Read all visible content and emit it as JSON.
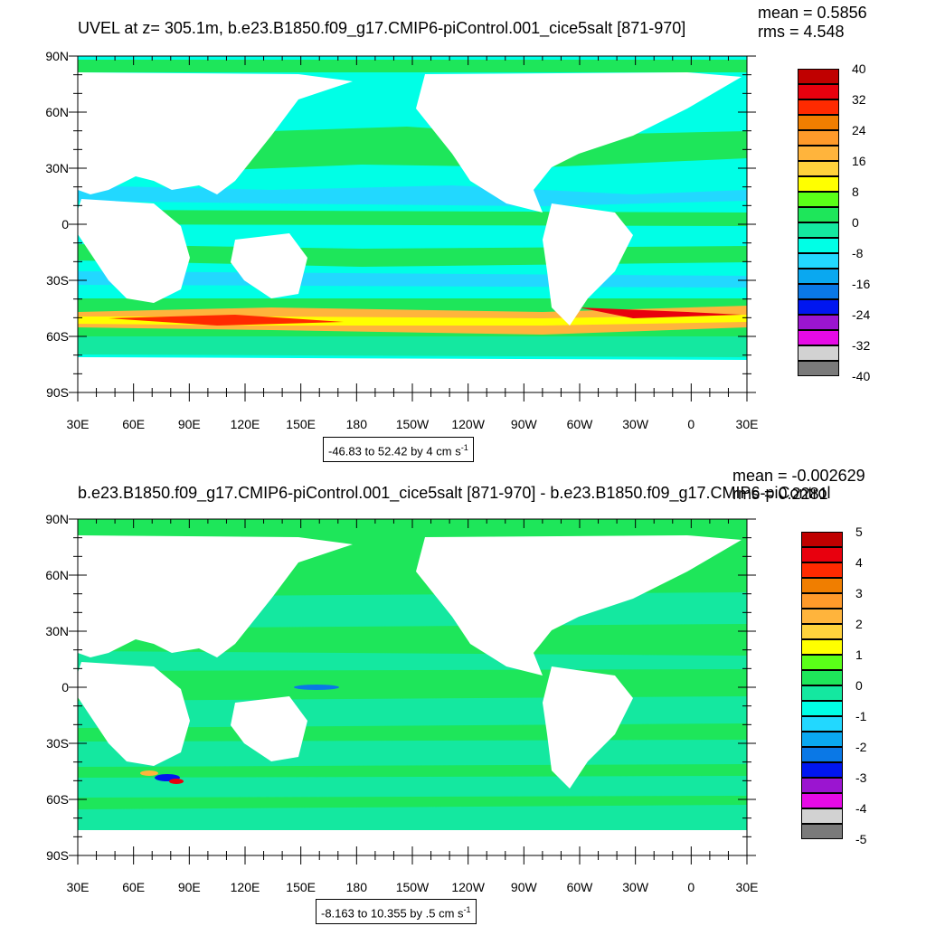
{
  "panels": [
    {
      "title": "UVEL at z= 305.1m, b.e23.B1850.f09_g17.CMIP6-piControl.001_cice5salt [871-970]",
      "mean_label": "mean = 0.5856",
      "rms_label": "rms = 4.548",
      "info_main": "-46.83 to 52.42 by 4 cm s",
      "info_sup": "-1",
      "colorbar_labels": [
        "40",
        "32",
        "24",
        "16",
        "8",
        "0",
        "-8",
        "-16",
        "-24",
        "-32",
        "-40"
      ],
      "lat_labels": [
        "90N",
        "60N",
        "30N",
        "0",
        "30S",
        "60S",
        "90S"
      ],
      "lon_labels": [
        "30E",
        "60E",
        "90E",
        "120E",
        "150E",
        "180",
        "150W",
        "120W",
        "90W",
        "60W",
        "30W",
        "0",
        "30E"
      ]
    },
    {
      "title": "b.e23.B1850.f09_g17.CMIP6-piControl.001_cice5salt [871-970] - b.e23.B1850.f09_g17.CMIP6-piControl",
      "mean_label": "mean = -0.002629",
      "rms_label": "rms = 0.2281",
      "info_main": "-8.163 to 10.355 by .5 cm s",
      "info_sup": "-1",
      "colorbar_labels": [
        "5",
        "4",
        "3",
        "2",
        "1",
        "0",
        "-1",
        "-2",
        "-3",
        "-4",
        "-5"
      ],
      "lat_labels": [
        "90N",
        "60N",
        "30N",
        "0",
        "30S",
        "60S",
        "90S"
      ],
      "lon_labels": [
        "30E",
        "60E",
        "90E",
        "120E",
        "150E",
        "180",
        "150W",
        "120W",
        "90W",
        "60W",
        "30W",
        "0",
        "30E"
      ]
    }
  ],
  "colorbar_colors": [
    "#c00000",
    "#e8000e",
    "#ff2a00",
    "#f07e00",
    "#ff9a2a",
    "#ffb43c",
    "#ffd23c",
    "#ffff00",
    "#5aff18",
    "#1ee65a",
    "#14e8a0",
    "#00ffe6",
    "#22d8ff",
    "#0aa8f0",
    "#0a78e6",
    "#0016f0",
    "#9b15d0",
    "#e60ae6",
    "#d2d2d2",
    "#7a7a7a"
  ],
  "map_colors": {
    "ocean_bg": "#00ffe6",
    "band_green": "#1ee65a",
    "band_cyan": "#14e8a0",
    "band_lightblue": "#22d8ff",
    "land": "#ffffff",
    "jet_red": "#e8000e",
    "jet_orange": "#ff9a2a",
    "jet_yellow": "#ffff00",
    "jet_blue": "#0016f0",
    "jet_purple": "#9b15d0"
  }
}
